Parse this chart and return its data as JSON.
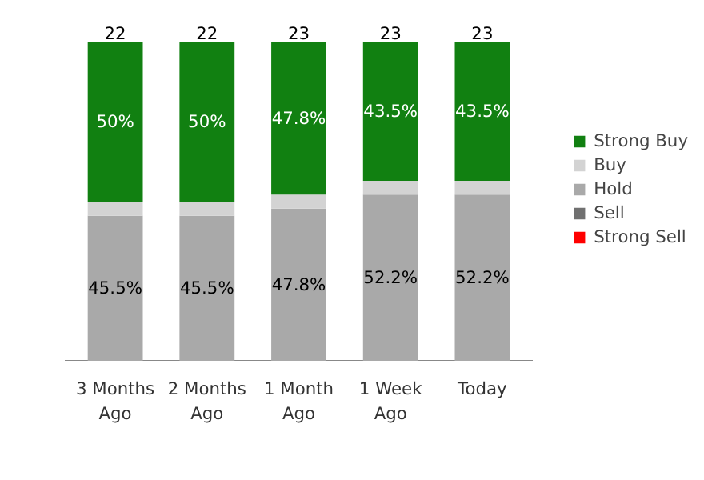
{
  "chart_data": {
    "type": "bar",
    "stacked": true,
    "categories": [
      "3 Months\nAgo",
      "2 Months\nAgo",
      "1 Month\nAgo",
      "1 Week\nAgo",
      "Today"
    ],
    "series": [
      {
        "name": "Strong Sell",
        "color": "#ff0000",
        "values": [
          0,
          0,
          0,
          0,
          0
        ]
      },
      {
        "name": "Sell",
        "color": "#707070",
        "values": [
          0,
          0,
          0,
          0,
          0
        ]
      },
      {
        "name": "Hold",
        "color": "#a9a9a9",
        "values": [
          45.5,
          45.5,
          47.8,
          52.2,
          52.2
        ],
        "value_labels": [
          "45.5%",
          "45.5%",
          "47.8%",
          "52.2%",
          "52.2%"
        ]
      },
      {
        "name": "Buy",
        "color": "#d3d3d3",
        "values": [
          4.5,
          4.5,
          4.4,
          4.3,
          4.3
        ]
      },
      {
        "name": "Strong Buy",
        "color": "#118011",
        "values": [
          50,
          50,
          47.8,
          43.5,
          43.5
        ],
        "value_labels": [
          "50%",
          "50%",
          "47.8%",
          "43.5%",
          "43.5%"
        ]
      }
    ],
    "annotations": [
      {
        "text": "22",
        "x": "3 Months\nAgo",
        "y": 100
      },
      {
        "text": "22",
        "x": "2 Months\nAgo",
        "y": 100
      },
      {
        "text": "23",
        "x": "1 Month\nAgo",
        "y": 100
      },
      {
        "text": "23",
        "x": "1 Week\nAgo",
        "y": 100
      },
      {
        "text": "23",
        "x": "Today",
        "y": 100
      }
    ],
    "legend": "right"
  }
}
